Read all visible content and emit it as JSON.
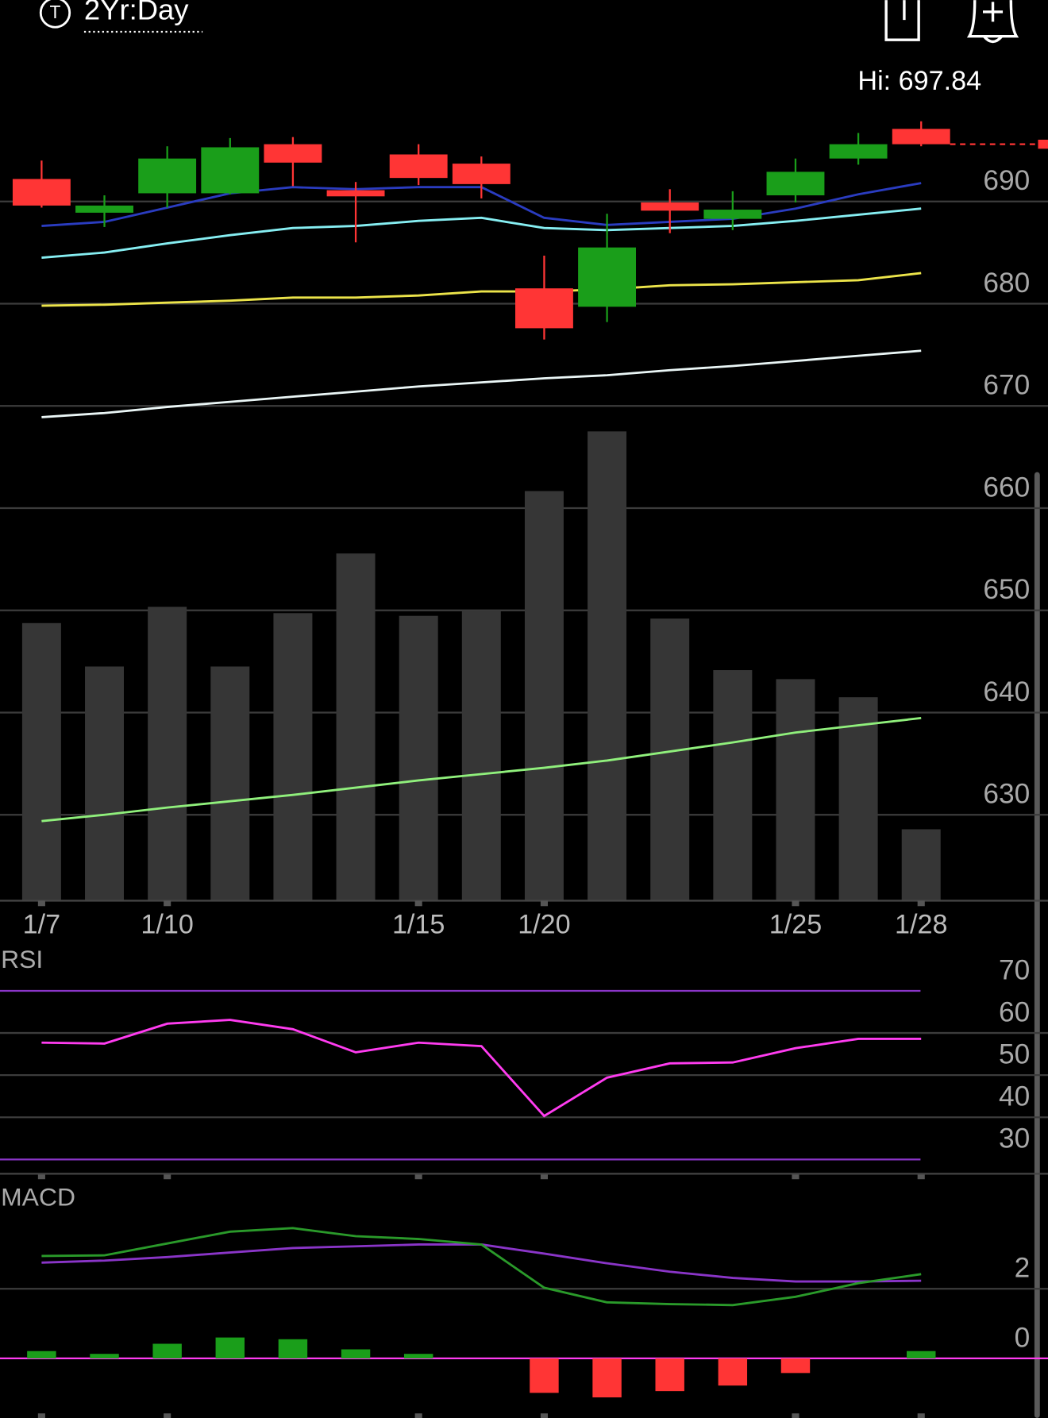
{
  "header": {
    "icon_letter": "T",
    "period": "2Yr:Day"
  },
  "chart_data": [
    {
      "type": "candlestick",
      "categories": [
        "1/7",
        null,
        "1/10",
        null,
        null,
        null,
        "1/15",
        null,
        "1/20",
        null,
        null,
        null,
        "1/25",
        null,
        "1/28"
      ],
      "open": [
        692.2,
        688.9,
        690.8,
        690.8,
        695.6,
        691.1,
        694.6,
        693.7,
        681.5,
        679.7,
        689.9,
        688.3,
        690.6,
        694.2,
        697.1
      ],
      "high": [
        694.0,
        690.6,
        695.4,
        696.2,
        696.3,
        691.9,
        695.6,
        694.4,
        684.7,
        688.8,
        691.2,
        691.0,
        694.2,
        696.7,
        697.84
      ],
      "low": [
        689.4,
        687.5,
        689.4,
        690.7,
        691.5,
        686.0,
        691.6,
        690.3,
        676.5,
        678.2,
        686.9,
        687.2,
        689.9,
        693.6,
        695.4
      ],
      "close": [
        689.6,
        689.6,
        694.2,
        695.3,
        693.8,
        690.5,
        692.3,
        691.7,
        677.6,
        685.5,
        689.1,
        689.2,
        692.9,
        695.6,
        695.6
      ],
      "up_color": "#1a9e1a",
      "down_color": "#ff3535",
      "high_label": "Hi: 697.84",
      "series": [
        {
          "color": "#2a3cc0",
          "values": [
            687.6,
            688.0,
            689.4,
            690.8,
            691.4,
            691.2,
            691.4,
            691.4,
            688.4,
            687.7,
            688.0,
            688.3,
            689.3,
            690.7,
            691.8
          ]
        },
        {
          "color": "#86eef2",
          "values": [
            684.5,
            685.0,
            685.9,
            686.7,
            687.4,
            687.6,
            688.1,
            688.4,
            687.4,
            687.2,
            687.4,
            687.6,
            688.1,
            688.7,
            689.3
          ]
        },
        {
          "color": "#ece44a",
          "values": [
            679.8,
            679.9,
            680.1,
            680.3,
            680.6,
            680.6,
            680.8,
            681.2,
            681.2,
            681.4,
            681.8,
            681.9,
            682.1,
            682.3,
            683.0
          ]
        },
        {
          "color": "#eaf6f6",
          "values": [
            668.9,
            669.3,
            669.9,
            670.4,
            670.9,
            671.4,
            671.9,
            672.3,
            672.7,
            673.0,
            673.5,
            673.9,
            674.4,
            674.9,
            675.4
          ]
        }
      ],
      "volume": [
        307,
        259,
        325,
        259,
        318,
        384,
        315,
        321,
        453,
        519,
        312,
        255,
        245,
        225,
        79
      ],
      "volume_color": "#363636",
      "volume_ma": [
        88,
        95,
        103,
        110,
        117,
        125,
        133,
        140,
        147,
        155,
        165,
        175,
        186,
        194,
        202
      ],
      "volume_ma_color": "#90f07c",
      "volume_ylim": [
        0,
        996
      ],
      "ylim": [
        621.6,
        709.7
      ],
      "yticks": [
        630,
        640,
        650,
        660,
        670,
        680,
        690
      ],
      "grid": true
    },
    {
      "type": "line",
      "title": "RSI",
      "values": [
        57.7,
        57.5,
        62.2,
        63.1,
        60.9,
        55.4,
        57.7,
        56.9,
        40.3,
        49.4,
        52.8,
        53.0,
        56.4,
        58.6,
        58.6
      ],
      "color": "#ff3cf0",
      "limit_line_color": "#8a35c8",
      "ylim": [
        26.6,
        79.8
      ],
      "yticks": [
        30,
        40,
        50,
        60,
        70
      ],
      "grid": true
    },
    {
      "type": "macd",
      "title": "MACD",
      "macd": [
        2.94,
        2.96,
        3.3,
        3.64,
        3.74,
        3.51,
        3.43,
        3.27,
        2.03,
        1.61,
        1.56,
        1.53,
        1.77,
        2.16,
        2.42
      ],
      "signal": [
        2.75,
        2.81,
        2.91,
        3.04,
        3.17,
        3.22,
        3.27,
        3.27,
        3.01,
        2.73,
        2.49,
        2.31,
        2.21,
        2.21,
        2.23
      ],
      "histogram": [
        0.21,
        0.13,
        0.42,
        0.6,
        0.55,
        0.26,
        0.13,
        0,
        -0.99,
        -1.12,
        -0.94,
        -0.78,
        -0.42,
        0,
        0.21
      ],
      "macd_color": "#2a9a2a",
      "signal_color": "#8a35c8",
      "zero_line_color": "#ff3cf0",
      "up_color": "#1a9e1a",
      "down_color": "#ff3535",
      "ylim": [
        -1.71,
        5.25
      ],
      "yticks": [
        0,
        2
      ],
      "grid": true
    }
  ]
}
